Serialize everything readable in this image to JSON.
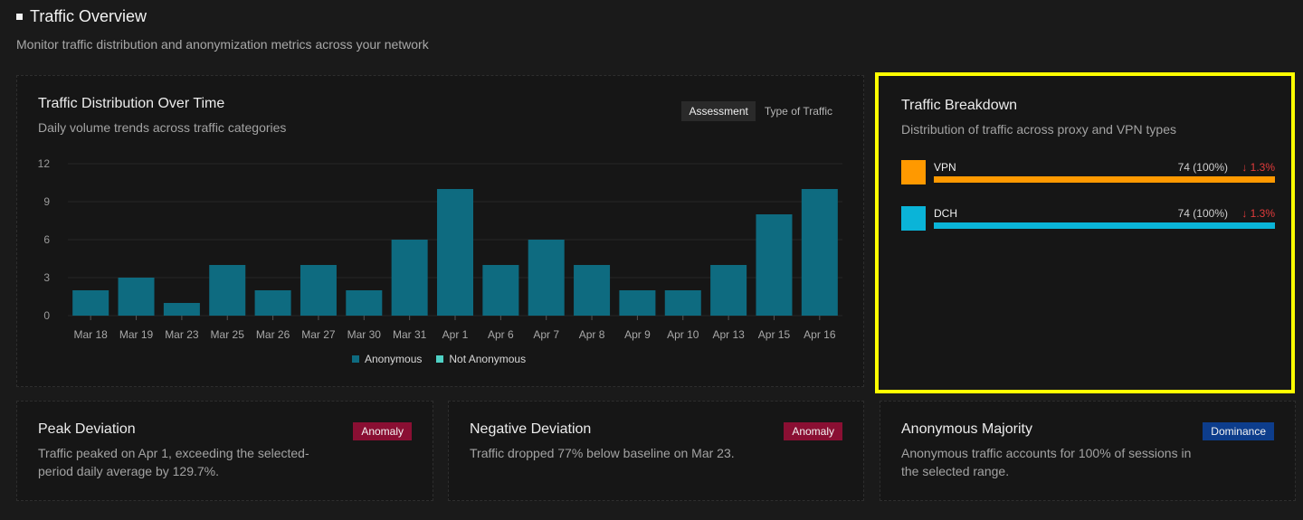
{
  "header": {
    "title": "Traffic Overview",
    "subtitle": "Monitor traffic distribution and anonymization metrics across your network"
  },
  "distribution": {
    "title": "Traffic Distribution Over Time",
    "subtitle": "Daily volume trends across traffic categories",
    "toggle": [
      "Assessment",
      "Type of Traffic"
    ],
    "legend": [
      {
        "label": "Anonymous",
        "color": "#0e6b80"
      },
      {
        "label": "Not Anonymous",
        "color": "#4fd1c5"
      }
    ]
  },
  "chart_data": {
    "type": "bar",
    "categories": [
      "Mar 18",
      "Mar 19",
      "Mar 23",
      "Mar 25",
      "Mar 26",
      "Mar 27",
      "Mar 30",
      "Mar 31",
      "Apr 1",
      "Apr 6",
      "Apr 7",
      "Apr 8",
      "Apr 9",
      "Apr 10",
      "Apr 13",
      "Apr 15",
      "Apr 16"
    ],
    "series": [
      {
        "name": "Anonymous",
        "values": [
          2,
          3,
          1,
          4,
          2,
          4,
          2,
          6,
          10,
          4,
          6,
          4,
          2,
          2,
          4,
          8,
          10
        ]
      },
      {
        "name": "Not Anonymous",
        "values": [
          0,
          0,
          0,
          0,
          0,
          0,
          0,
          0,
          0,
          0,
          0,
          0,
          0,
          0,
          0,
          0,
          0
        ]
      }
    ],
    "yticks": [
      0,
      3,
      6,
      9,
      12
    ],
    "ylim": [
      0,
      12
    ],
    "grid": true,
    "legend": "bottom"
  },
  "breakdown": {
    "title": "Traffic Breakdown",
    "subtitle": "Distribution of traffic across proxy and VPN types",
    "rows": [
      {
        "label": "VPN",
        "value": "74 (100%)",
        "delta": "↓ 1.3%",
        "color": "#ff9900",
        "fraction": 1.0
      },
      {
        "label": "DCH",
        "value": "74 (100%)",
        "delta": "↓ 1.3%",
        "color": "#0ab4d8",
        "fraction": 1.0
      }
    ]
  },
  "insights": {
    "peak": {
      "title": "Peak Deviation",
      "badge": "Anomaly",
      "badge_color": "#8a0f33",
      "text": "Traffic peaked on Apr 1, exceeding the selected-period daily average by 129.7%."
    },
    "negative": {
      "title": "Negative Deviation",
      "badge": "Anomaly",
      "badge_color": "#8a0f33",
      "text": "Traffic dropped 77% below baseline on Mar 23."
    },
    "anonymous": {
      "title": "Anonymous Majority",
      "badge": "Dominance",
      "badge_color": "#0d3d8c",
      "text": "Anonymous traffic accounts for 100% of sessions in the selected range."
    }
  }
}
